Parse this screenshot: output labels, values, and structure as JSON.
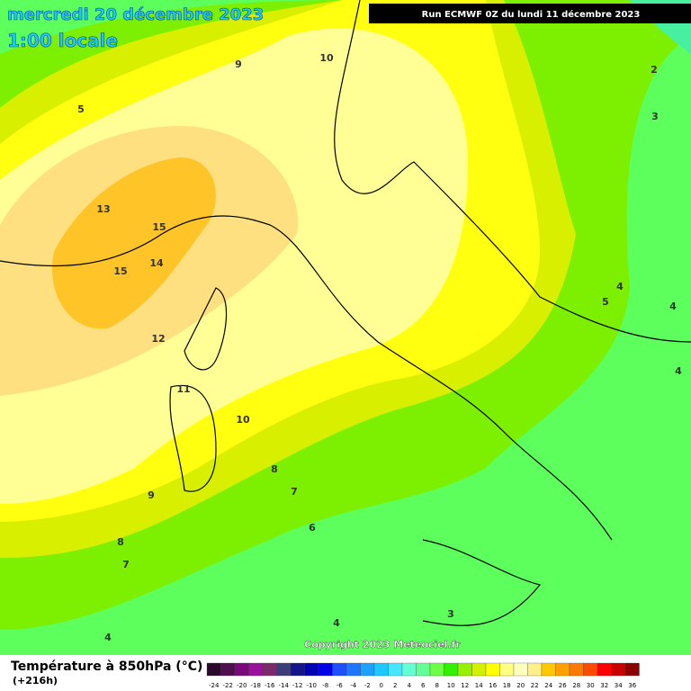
{
  "header": {
    "date": "mercredi 20 décembre 2023",
    "time": "1:00 locale",
    "run": "Run ECMWF 0Z du lundi 11 décembre 2023",
    "copyright": "Copyright 2023 Meteociel.fr"
  },
  "legend": {
    "title": "Température à 850hPa (°C)",
    "lead": "(+216h)",
    "labels": [
      -24,
      -22,
      -20,
      -18,
      -16,
      -14,
      -12,
      -10,
      -8,
      -6,
      -4,
      -2,
      0,
      2,
      4,
      6,
      8,
      10,
      12,
      14,
      16,
      18,
      20,
      22,
      24,
      26,
      28,
      30,
      32,
      34,
      36
    ],
    "colors": [
      "#2a0a2a",
      "#4e0f4e",
      "#7a0a7a",
      "#9a109a",
      "#7a2a6a",
      "#3c3c78",
      "#14148c",
      "#0000b4",
      "#0000e6",
      "#1e50ff",
      "#1e78ff",
      "#1ea0ff",
      "#1ec8ff",
      "#46e6ff",
      "#64ffd2",
      "#64ff96",
      "#6eff46",
      "#32f000",
      "#96f000",
      "#d2f000",
      "#ffff00",
      "#ffff82",
      "#ffffbe",
      "#fff08c",
      "#ffc800",
      "#ffa000",
      "#ff7800",
      "#ff4b00",
      "#ff0000",
      "#c80000",
      "#8c0000"
    ]
  },
  "contours": [
    9,
    10,
    5,
    2,
    3,
    13,
    15,
    15,
    14,
    12,
    11,
    10,
    8,
    7,
    9,
    6,
    8,
    7,
    4,
    3,
    4,
    4,
    5,
    4,
    4
  ]
}
